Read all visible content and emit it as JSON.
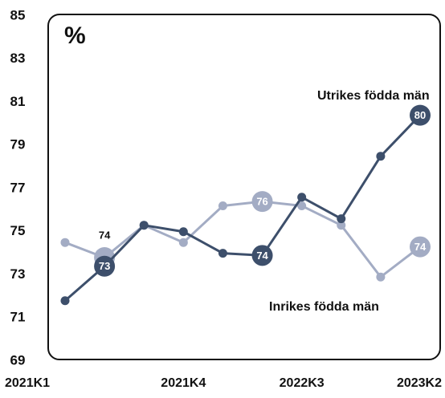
{
  "chart_data": {
    "type": "line",
    "title": "%",
    "categories": [
      "2021K1",
      null,
      null,
      "2021K4",
      null,
      null,
      "2022K3",
      null,
      null,
      "2023K2"
    ],
    "ylim": [
      69,
      85
    ],
    "yticks": [
      69,
      71,
      73,
      75,
      77,
      79,
      81,
      83,
      85
    ],
    "series": [
      {
        "name": "Inrikes födda män",
        "color": "#a3acc4",
        "values": [
          74.5,
          73.8,
          75.3,
          74.5,
          76.2,
          76.4,
          76.2,
          75.3,
          72.9,
          74.3
        ],
        "value_labels": [
          null,
          "74",
          null,
          null,
          null,
          "76",
          null,
          null,
          null,
          "74"
        ]
      },
      {
        "name": "Utrikes födda män",
        "color": "#3d4f6b",
        "values": [
          71.8,
          73.4,
          75.3,
          75.0,
          74.0,
          73.9,
          76.6,
          75.6,
          78.5,
          80.4
        ],
        "value_labels": [
          null,
          "73",
          null,
          null,
          null,
          "74",
          null,
          null,
          null,
          "80"
        ]
      }
    ]
  }
}
